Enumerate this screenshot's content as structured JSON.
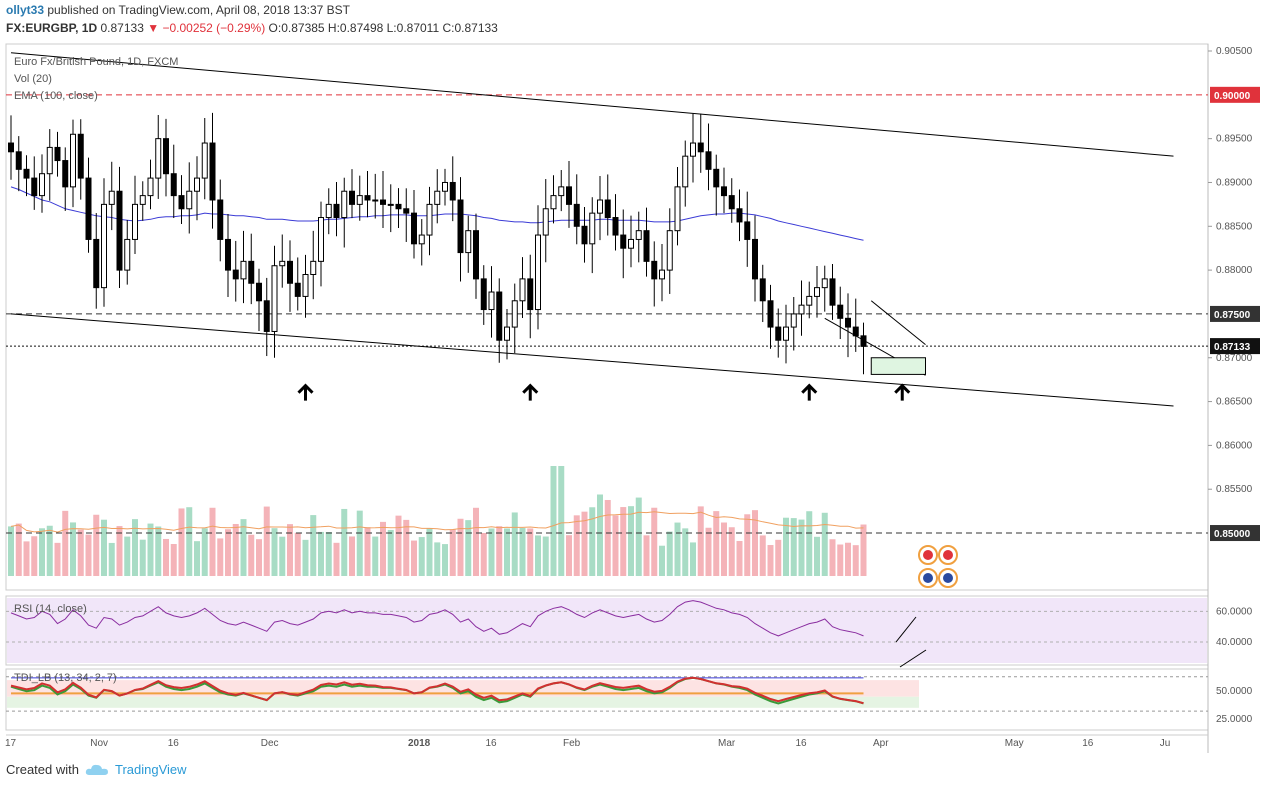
{
  "header": {
    "user": "ollyt33",
    "published_text": "published on TradingView.com, April 08, 2018 13:37 BST",
    "symbol": "FX:EURGBP, 1D",
    "last": "0.87133",
    "change": "−0.00252 (−0.29%)",
    "ohlc": "O:0.87385 H:0.87498 L:0.87011 C:0.87133"
  },
  "footer": {
    "created_with": "Created with",
    "brand": "TradingView"
  },
  "chart_data": {
    "type": "candlestick",
    "title": "Euro Fx/British Pound, 1D, FXCM",
    "legend": [
      "Vol (20)",
      "EMA (100, close)"
    ],
    "ylim": [
      0.8435,
      0.9058
    ],
    "y_ticks": [
      "0.90500",
      "0.89500",
      "0.89000",
      "0.88500",
      "0.88000",
      "0.87000",
      "0.86500",
      "0.86000",
      "0.85500"
    ],
    "price_tags": [
      {
        "label": "0.90000",
        "value": 0.9,
        "color": "#e0323b"
      },
      {
        "label": "0.87500",
        "value": 0.875,
        "color": "#333333"
      },
      {
        "label": "0.87133",
        "value": 0.87133,
        "color": "#111111"
      },
      {
        "label": "0.85000",
        "value": 0.85,
        "color": "#333333"
      }
    ],
    "x_ticks": [
      "17",
      "Nov",
      "16",
      "Dec",
      "2018",
      "16",
      "Feb",
      "Mar",
      "16",
      "Apr",
      "May",
      "16",
      "Ju"
    ],
    "x_tick_index": [
      0,
      11,
      21,
      33,
      52,
      62,
      72,
      92,
      102,
      112,
      129,
      139,
      149
    ],
    "bull_color": "#ffffff",
    "bear_color": "#000000",
    "closes": [
      0.8935,
      0.8915,
      0.8905,
      0.8885,
      0.891,
      0.894,
      0.8925,
      0.8895,
      0.8955,
      0.8905,
      0.8835,
      0.878,
      0.8875,
      0.889,
      0.88,
      0.8835,
      0.8875,
      0.8885,
      0.8905,
      0.895,
      0.891,
      0.8885,
      0.887,
      0.889,
      0.8905,
      0.8945,
      0.888,
      0.8835,
      0.88,
      0.879,
      0.881,
      0.8785,
      0.8765,
      0.873,
      0.8805,
      0.881,
      0.8785,
      0.877,
      0.8795,
      0.881,
      0.886,
      0.8875,
      0.886,
      0.889,
      0.8875,
      0.8885,
      0.888,
      0.888,
      0.8875,
      0.8875,
      0.887,
      0.8865,
      0.883,
      0.884,
      0.8875,
      0.889,
      0.89,
      0.888,
      0.882,
      0.8845,
      0.879,
      0.8755,
      0.8775,
      0.872,
      0.8735,
      0.8765,
      0.879,
      0.8755,
      0.884,
      0.887,
      0.8885,
      0.8895,
      0.8875,
      0.885,
      0.883,
      0.8865,
      0.888,
      0.886,
      0.884,
      0.8825,
      0.8835,
      0.8845,
      0.881,
      0.879,
      0.88,
      0.8845,
      0.8895,
      0.893,
      0.8945,
      0.8935,
      0.8915,
      0.8895,
      0.8885,
      0.887,
      0.8855,
      0.8835,
      0.879,
      0.8765,
      0.8735,
      0.872,
      0.8735,
      0.875,
      0.876,
      0.877,
      0.878,
      0.879,
      0.876,
      0.8745,
      0.8735,
      0.8725,
      0.8713
    ],
    "ema_100": [
      0.8895,
      0.8892,
      0.8888,
      0.8884,
      0.888,
      0.8878,
      0.8874,
      0.887,
      0.8868,
      0.8866,
      0.8864,
      0.8862,
      0.8861,
      0.886,
      0.8858,
      0.8857,
      0.8856,
      0.8857,
      0.8858,
      0.886,
      0.8861,
      0.8861,
      0.8862,
      0.8862,
      0.8863,
      0.8865,
      0.8864,
      0.8864,
      0.8863,
      0.8862,
      0.8862,
      0.8861,
      0.886,
      0.8858,
      0.8858,
      0.8858,
      0.8857,
      0.8856,
      0.8856,
      0.8856,
      0.8857,
      0.8858,
      0.8858,
      0.8859,
      0.886,
      0.8861,
      0.8861,
      0.8862,
      0.8862,
      0.8863,
      0.8863,
      0.8863,
      0.8862,
      0.8862,
      0.8862,
      0.8863,
      0.8864,
      0.8864,
      0.8864,
      0.8863,
      0.8862,
      0.886,
      0.8859,
      0.8857,
      0.8856,
      0.8855,
      0.8855,
      0.8854,
      0.8854,
      0.8855,
      0.8856,
      0.8857,
      0.8857,
      0.8857,
      0.8857,
      0.8857,
      0.8858,
      0.8858,
      0.8857,
      0.8857,
      0.8857,
      0.8857,
      0.8856,
      0.8855,
      0.8855,
      0.8855,
      0.8856,
      0.8858,
      0.886,
      0.8862,
      0.8863,
      0.8864,
      0.8864,
      0.8865,
      0.8865,
      0.8864,
      0.8863,
      0.8861,
      0.8859,
      0.8856,
      0.8854,
      0.8852,
      0.885,
      0.8848,
      0.8846,
      0.8844,
      0.8842,
      0.884,
      0.8838,
      0.8836,
      0.8834
    ],
    "volume_oscillator_label": "0.85500",
    "volume_bull": "#a8dcc5",
    "volume_bear": "#f4b3b8",
    "trendlines": [
      {
        "from": [
          0,
          0.9048
        ],
        "to": [
          150,
          0.893
        ],
        "name": "upper-channel"
      },
      {
        "from": [
          0,
          0.875
        ],
        "to": [
          150,
          0.8645
        ],
        "name": "lower-channel"
      },
      {
        "from": [
          111,
          0.8765
        ],
        "to": [
          118,
          0.8715
        ],
        "name": "wedge-top"
      },
      {
        "from": [
          105,
          0.8745
        ],
        "to": [
          118,
          0.868
        ],
        "name": "wedge-bottom"
      }
    ],
    "arrows_at": [
      38,
      67,
      103,
      115
    ],
    "target_box": {
      "from": [
        111,
        0.87
      ],
      "to": [
        118,
        0.8681
      ]
    },
    "rsi": {
      "label": "RSI (14, close)",
      "ticks": [
        "60.0000",
        "40.0000"
      ],
      "values": [
        59,
        57,
        55,
        56,
        60,
        58,
        52,
        55,
        61,
        57,
        51,
        49,
        56,
        55,
        51,
        53,
        56,
        57,
        60,
        63,
        59,
        57,
        56,
        57,
        59,
        62,
        58,
        54,
        52,
        51,
        53,
        51,
        49,
        47,
        53,
        54,
        52,
        51,
        53,
        55,
        59,
        60,
        59,
        61,
        59,
        60,
        59,
        59,
        58,
        58,
        57,
        56,
        53,
        54,
        58,
        59,
        61,
        58,
        53,
        55,
        50,
        47,
        49,
        45,
        46,
        49,
        52,
        50,
        57,
        60,
        62,
        63,
        61,
        58,
        56,
        59,
        61,
        59,
        57,
        56,
        57,
        58,
        55,
        53,
        54,
        58,
        63,
        66,
        67,
        66,
        64,
        62,
        61,
        59,
        58,
        56,
        52,
        49,
        46,
        44,
        46,
        48,
        50,
        52,
        53,
        55,
        50,
        48,
        47,
        46,
        44
      ]
    },
    "tdi": {
      "label": "TDI_LB (13, 34, 2, 7)",
      "ticks": [
        "50.0000",
        "25.0000"
      ]
    }
  }
}
